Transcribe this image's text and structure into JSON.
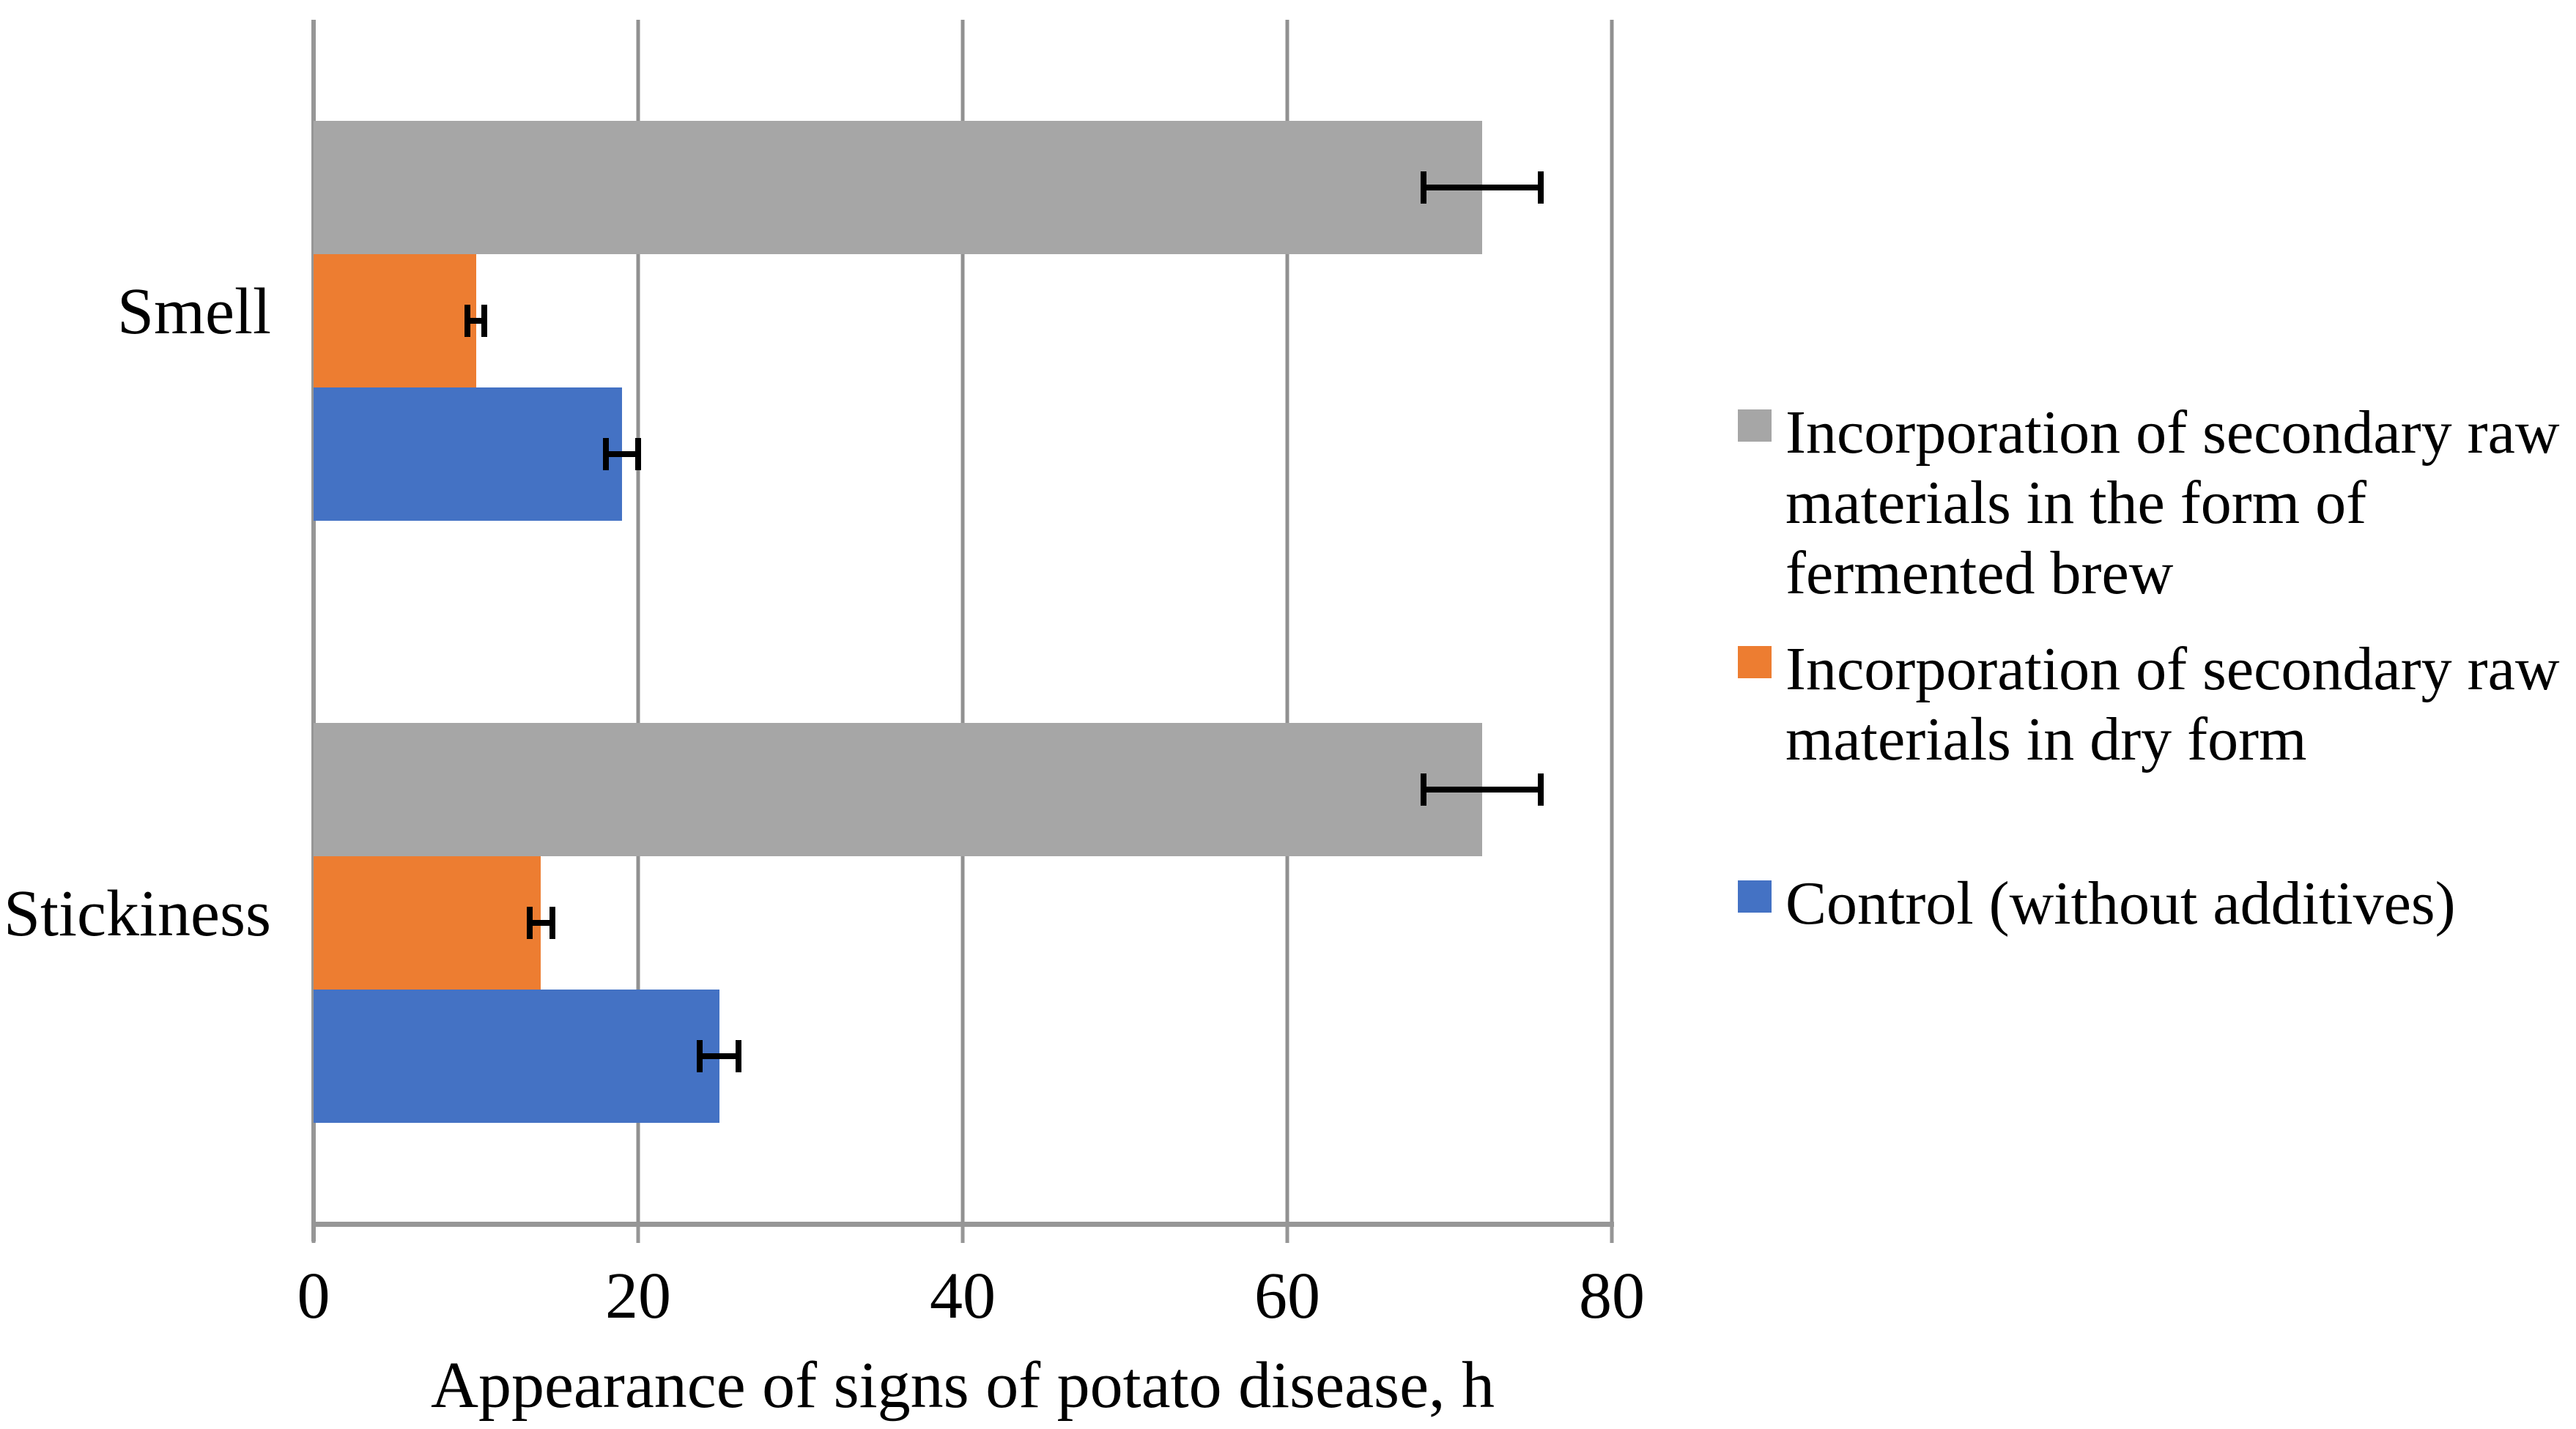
{
  "chart_data": {
    "type": "bar",
    "orientation": "horizontal",
    "title": "",
    "xlabel": "Appearance of signs of potato disease, h",
    "ylabel": "",
    "xlim": [
      0,
      80
    ],
    "xticks": [
      0,
      20,
      40,
      60,
      80
    ],
    "grid": true,
    "legend_position": "right",
    "categories": [
      "Smell",
      "Stickiness"
    ],
    "series": [
      {
        "name": "Incorporation of secondary raw materials in the form of fermented brew",
        "color": "#a6a6a6",
        "values": [
          72,
          72
        ],
        "errors": [
          3.6,
          3.6
        ]
      },
      {
        "name": "Incorporation of secondary raw materials in dry form",
        "color": "#ed7d31",
        "values": [
          10,
          14
        ],
        "errors": [
          0.5,
          0.7
        ]
      },
      {
        "name": "Control (without additives)",
        "color": "#4472c4",
        "values": [
          19,
          25
        ],
        "errors": [
          1.0,
          1.2
        ]
      }
    ],
    "error_bar_color": "#000000",
    "gridline_color": "#919191",
    "axis_color": "#969696"
  }
}
